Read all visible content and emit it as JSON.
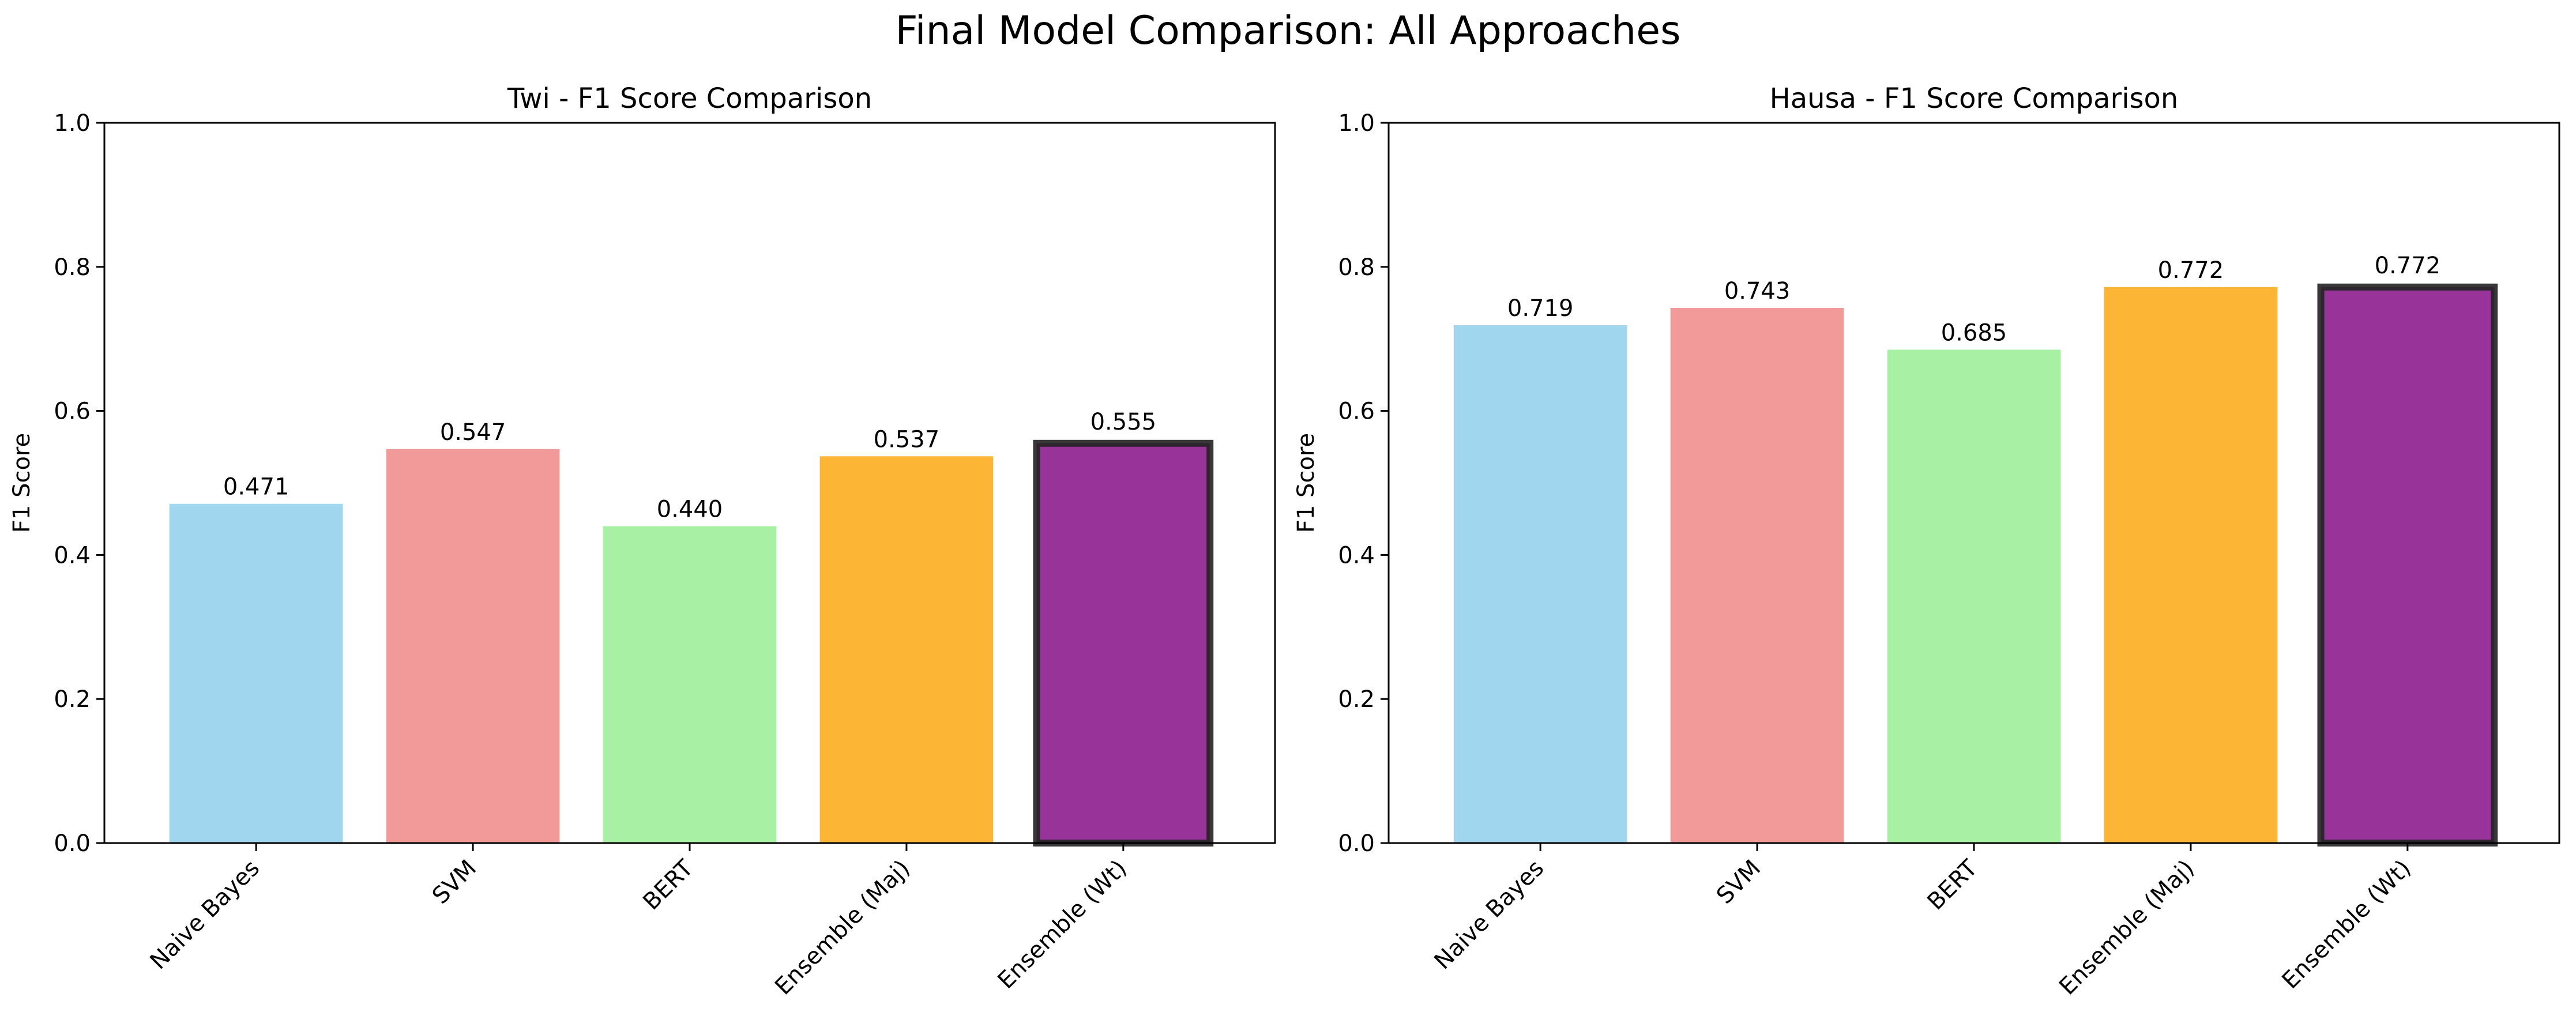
{
  "figure": {
    "title": "Final Model Comparison: All Approaches"
  },
  "chart_data": [
    {
      "type": "bar",
      "title": "Twi - F1 Score Comparison",
      "xlabel": "",
      "ylabel": "F1 Score",
      "ylim": [
        0,
        1.0
      ],
      "yticks": [
        "0.0",
        "0.2",
        "0.4",
        "0.6",
        "0.8",
        "1.0"
      ],
      "categories": [
        "Naive Bayes",
        "SVM",
        "BERT",
        "Ensemble (Maj)",
        "Ensemble (Wt)"
      ],
      "values": [
        0.471,
        0.547,
        0.44,
        0.537,
        0.555
      ],
      "value_labels": [
        "0.471",
        "0.547",
        "0.440",
        "0.537",
        "0.555"
      ],
      "colors": [
        "#a0d6ee",
        "#f29a9a",
        "#a7f0a4",
        "#fdb535",
        "#983399"
      ],
      "highlighted_index": 4,
      "grid": false,
      "legend": "none"
    },
    {
      "type": "bar",
      "title": "Hausa - F1 Score Comparison",
      "xlabel": "",
      "ylabel": "F1 Score",
      "ylim": [
        0,
        1.0
      ],
      "yticks": [
        "0.0",
        "0.2",
        "0.4",
        "0.6",
        "0.8",
        "1.0"
      ],
      "categories": [
        "Naive Bayes",
        "SVM",
        "BERT",
        "Ensemble (Maj)",
        "Ensemble (Wt)"
      ],
      "values": [
        0.719,
        0.743,
        0.685,
        0.772,
        0.772
      ],
      "value_labels": [
        "0.719",
        "0.743",
        "0.685",
        "0.772",
        "0.772"
      ],
      "colors": [
        "#a0d6ee",
        "#f29a9a",
        "#a7f0a4",
        "#fdb535",
        "#983399"
      ],
      "highlighted_index": 4,
      "grid": false,
      "legend": "none"
    }
  ]
}
